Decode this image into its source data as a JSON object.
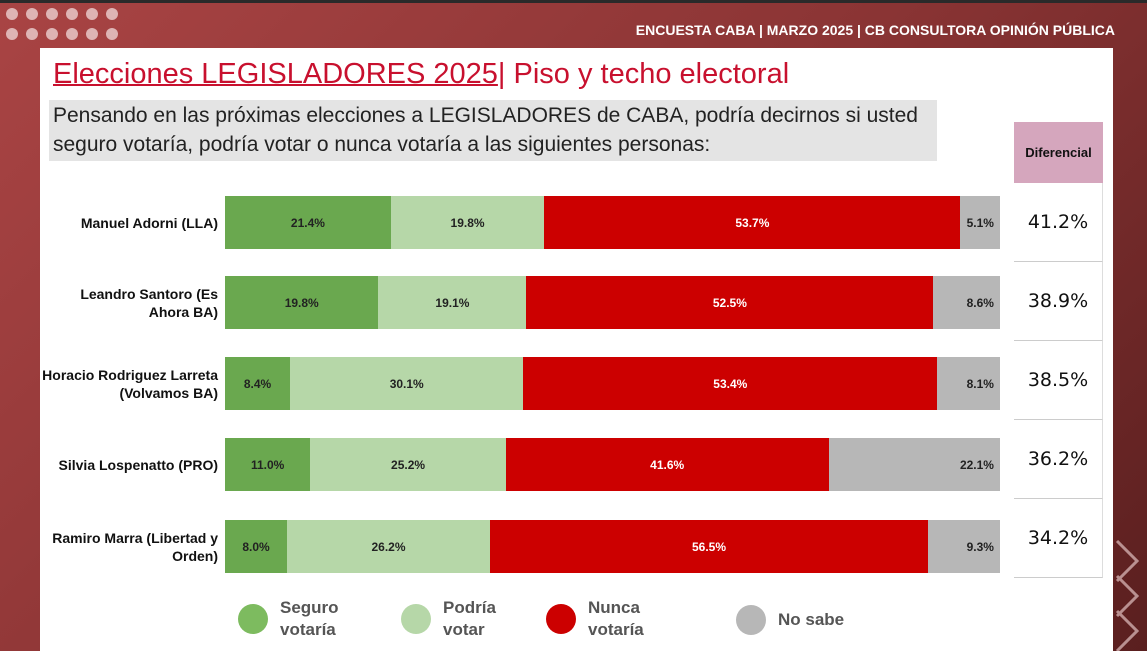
{
  "header": "ENCUESTA CABA | MARZO 2025 | CB CONSULTORA OPINIÓN PÚBLICA",
  "title_main": "Elecciones LEGISLADORES 2025",
  "title_rest": "| Piso y techo electoral",
  "question": "Pensando en las próximas elecciones a LEGISLADORES de CABA, podría decirnos si usted seguro votaría, podría votar o nunca votaría a las siguientes personas:",
  "colors": {
    "seguro": "#6aa84f",
    "podria": "#b6d7a8",
    "nunca": "#cc0000",
    "nosabe": "#b7b7b7"
  },
  "chart_data": {
    "type": "bar",
    "stacked": true,
    "orientation": "horizontal",
    "categories": [
      "Manuel Adorni (LLA)",
      "Leandro Santoro (Es Ahora BA)",
      "Horacio Rodriguez Larreta (Volvamos BA)",
      "Silvia Lospenatto (PRO)",
      "Ramiro Marra (Libertad y Orden)"
    ],
    "series": [
      {
        "name": "Seguro votaría",
        "values": [
          21.4,
          19.8,
          8.4,
          11.0,
          8.0
        ],
        "labels": [
          "21.4%",
          "19.8%",
          "8.4%",
          "11.0%",
          "8.0%"
        ]
      },
      {
        "name": "Podría votar",
        "values": [
          19.8,
          19.1,
          30.1,
          25.2,
          26.2
        ],
        "labels": [
          "19.8%",
          "19.1%",
          "30.1%",
          "25.2%",
          "26.2%"
        ]
      },
      {
        "name": "Nunca votaría",
        "values": [
          53.7,
          52.5,
          53.4,
          41.6,
          56.5
        ],
        "labels": [
          "53.7%",
          "52.5%",
          "53.4%",
          "41.6%",
          "56.5%"
        ]
      },
      {
        "name": "No sabe",
        "values": [
          5.1,
          8.6,
          8.1,
          22.1,
          9.3
        ],
        "labels": [
          "5.1%",
          "8.6%",
          "8.1%",
          "22.1%",
          "9.3%"
        ]
      }
    ],
    "legend_position": "bottom",
    "differential": {
      "header": "Diferencial",
      "values": [
        "41.2%",
        "38.9%",
        "38.5%",
        "36.2%",
        "34.2%"
      ]
    }
  }
}
